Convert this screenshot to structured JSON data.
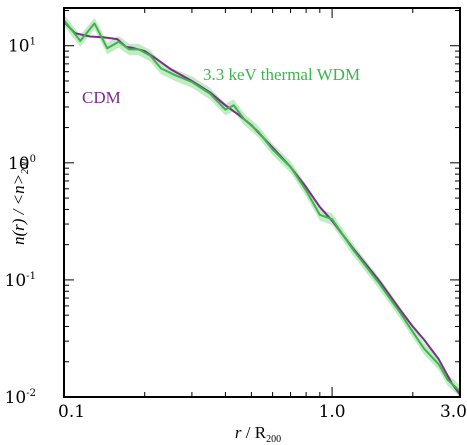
{
  "chart_data": {
    "type": "line",
    "xscale": "log",
    "yscale": "log",
    "xlim": [
      0.1,
      3.0
    ],
    "ylim": [
      0.01,
      21
    ],
    "grid": false,
    "x_ticks": [
      {
        "value": 0.1,
        "label": "0.1"
      },
      {
        "value": 1.0,
        "label": "1.0"
      },
      {
        "value": 3.0,
        "label": "3.0"
      }
    ],
    "y_ticks": [
      {
        "value": 0.01,
        "base": "10",
        "exp": "-2"
      },
      {
        "value": 0.1,
        "base": "10",
        "exp": "-1"
      },
      {
        "value": 1,
        "base": "10",
        "exp": "0"
      },
      {
        "value": 10,
        "base": "10",
        "exp": "1"
      }
    ],
    "xlabel": {
      "main": "r",
      "sep": " / R",
      "sub": "200"
    },
    "ylabel": {
      "main": "n(r) / <n>",
      "sub": "200"
    },
    "series": [
      {
        "name": "CDM",
        "color": "#7b2d8a",
        "band": false,
        "points": [
          [
            0.1,
            16.0
          ],
          [
            0.11,
            12.8
          ],
          [
            0.125,
            12.0
          ],
          [
            0.14,
            11.8
          ],
          [
            0.158,
            11.4
          ],
          [
            0.17,
            9.8
          ],
          [
            0.18,
            9.6
          ],
          [
            0.2,
            9.0
          ],
          [
            0.22,
            7.8
          ],
          [
            0.25,
            6.3
          ],
          [
            0.3,
            5.0
          ],
          [
            0.35,
            4.0
          ],
          [
            0.4,
            3.1
          ],
          [
            0.45,
            2.55
          ],
          [
            0.5,
            2.1
          ],
          [
            0.6,
            1.35
          ],
          [
            0.7,
            0.92
          ],
          [
            0.8,
            0.62
          ],
          [
            0.9,
            0.42
          ],
          [
            1.0,
            0.32
          ],
          [
            1.2,
            0.185
          ],
          [
            1.5,
            0.098
          ],
          [
            1.8,
            0.055
          ],
          [
            2.0,
            0.04
          ],
          [
            2.2,
            0.031
          ],
          [
            2.5,
            0.021
          ],
          [
            2.8,
            0.013
          ],
          [
            3.0,
            0.0105
          ]
        ]
      },
      {
        "name": "3.3 keV thermal WDM",
        "color": "#3cb54a",
        "band_color": "#b8e6bc",
        "band": true,
        "points": [
          [
            0.1,
            16.5
          ],
          [
            0.115,
            11.0
          ],
          [
            0.13,
            15.5
          ],
          [
            0.145,
            9.5
          ],
          [
            0.16,
            10.8
          ],
          [
            0.175,
            9.3
          ],
          [
            0.19,
            9.3
          ],
          [
            0.21,
            8.2
          ],
          [
            0.23,
            6.4
          ],
          [
            0.26,
            5.6
          ],
          [
            0.3,
            4.9
          ],
          [
            0.35,
            3.9
          ],
          [
            0.4,
            2.85
          ],
          [
            0.43,
            3.1
          ],
          [
            0.47,
            2.35
          ],
          [
            0.53,
            1.85
          ],
          [
            0.6,
            1.3
          ],
          [
            0.7,
            0.92
          ],
          [
            0.8,
            0.58
          ],
          [
            0.9,
            0.36
          ],
          [
            1.0,
            0.33
          ],
          [
            1.2,
            0.18
          ],
          [
            1.5,
            0.093
          ],
          [
            1.8,
            0.052
          ],
          [
            2.0,
            0.036
          ],
          [
            2.2,
            0.026
          ],
          [
            2.5,
            0.019
          ],
          [
            2.7,
            0.014
          ],
          [
            3.0,
            0.0112
          ]
        ]
      }
    ],
    "annotations": [
      {
        "text": "CDM",
        "series": 0
      },
      {
        "text": "3.3 keV thermal WDM",
        "series": 1
      }
    ]
  }
}
